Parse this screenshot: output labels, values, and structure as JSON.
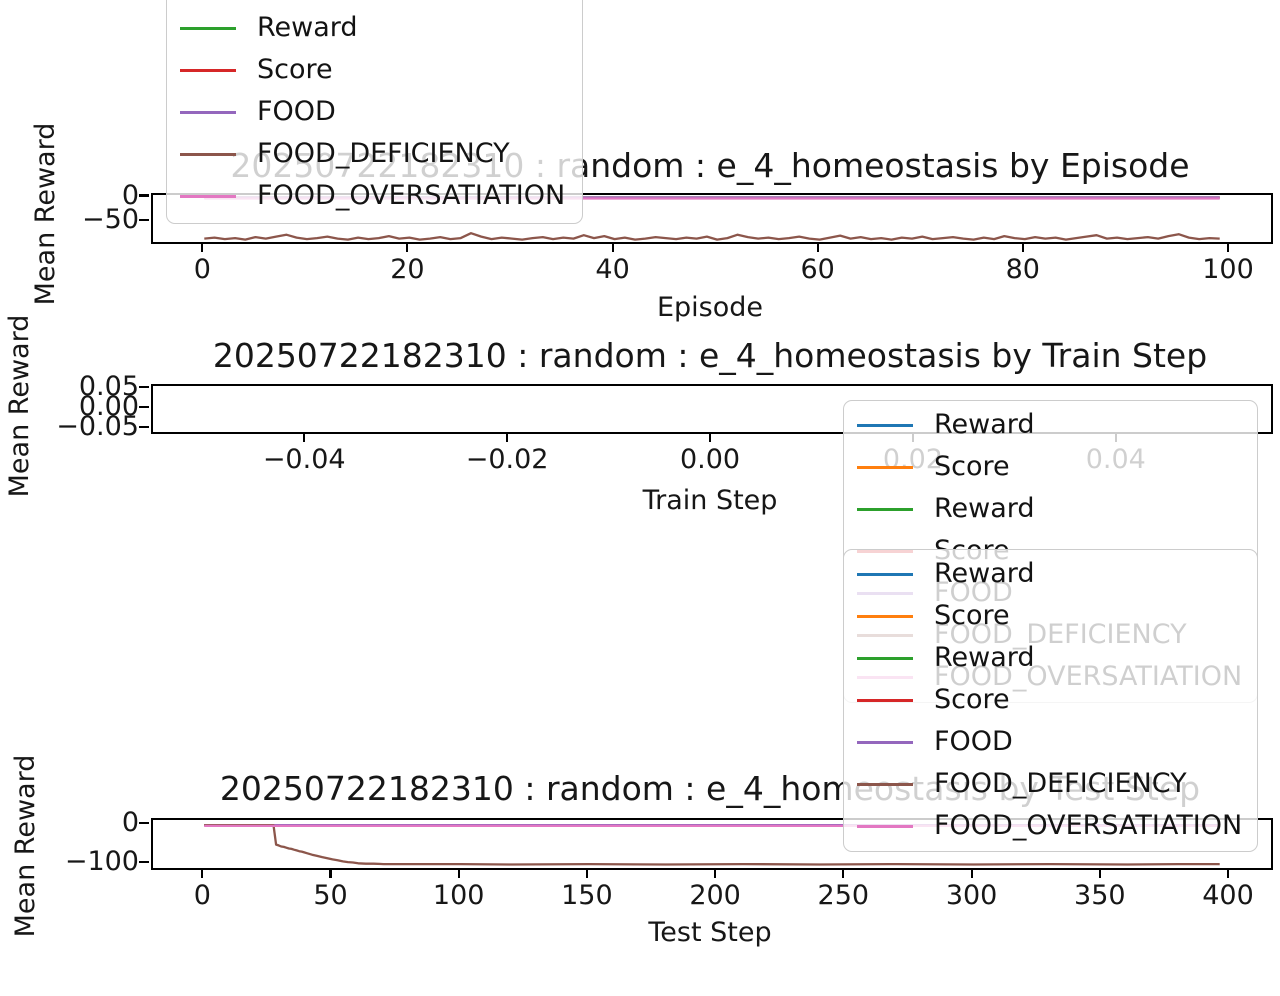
{
  "chart_data": [
    {
      "type": "line",
      "id": "episode",
      "title": "20250722182310 : random : e_4_homeostasis by Episode",
      "xlabel": "Episode",
      "ylabel": "Mean Reward",
      "xlim": [
        -5,
        104
      ],
      "ylim": [
        -91,
        5.2
      ],
      "grid": false,
      "xticks": [
        {
          "v": 0,
          "label": "0"
        },
        {
          "v": 20,
          "label": "20"
        },
        {
          "v": 40,
          "label": "40"
        },
        {
          "v": 60,
          "label": "60"
        },
        {
          "v": 80,
          "label": "80"
        },
        {
          "v": 100,
          "label": "100"
        }
      ],
      "yticks": [
        {
          "v": 0,
          "label": "0"
        },
        {
          "v": -50,
          "label": "−50"
        }
      ],
      "series": [
        {
          "name": "Reward",
          "color": "#2ca02c",
          "type": "flat",
          "y": 0,
          "x0": 0,
          "x1": 99
        },
        {
          "name": "Score",
          "color": "#d62728",
          "type": "flat",
          "y": 0,
          "x0": 0,
          "x1": 99
        },
        {
          "name": "FOOD",
          "color": "#9467bd",
          "type": "flat",
          "y": 0,
          "x0": 0,
          "x1": 99
        },
        {
          "name": "FOOD_DEFICIENCY",
          "color": "#8c564b",
          "type": "values",
          "x0": 0,
          "dx": 1,
          "values": [
            -84,
            -82,
            -85,
            -83,
            -86,
            -81,
            -84,
            -80,
            -76,
            -82,
            -85,
            -83,
            -80,
            -84,
            -86,
            -82,
            -85,
            -83,
            -79,
            -84,
            -82,
            -86,
            -84,
            -81,
            -85,
            -83,
            -73,
            -80,
            -85,
            -82,
            -84,
            -86,
            -83,
            -81,
            -85,
            -82,
            -84,
            -77,
            -83,
            -79,
            -85,
            -82,
            -86,
            -84,
            -81,
            -83,
            -85,
            -82,
            -84,
            -80,
            -86,
            -83,
            -76,
            -81,
            -84,
            -82,
            -85,
            -83,
            -80,
            -84,
            -86,
            -82,
            -78,
            -84,
            -81,
            -85,
            -83,
            -86,
            -82,
            -84,
            -80,
            -85,
            -83,
            -81,
            -84,
            -86,
            -82,
            -85,
            -79,
            -83,
            -85,
            -81,
            -84,
            -82,
            -86,
            -83,
            -80,
            -77,
            -84,
            -82,
            -85,
            -83,
            -81,
            -84,
            -79,
            -75,
            -82,
            -85,
            -83,
            -84
          ]
        },
        {
          "name": "FOOD_OVERSATIATION",
          "color": "#e377c2",
          "type": "flat",
          "y": -2,
          "x0": 0,
          "x1": 99
        }
      ]
    },
    {
      "type": "line",
      "id": "train-step",
      "title": "20250722182310 : random : e_4_homeostasis by Train Step",
      "xlabel": "Train Step",
      "ylabel": "Mean Reward",
      "xlim": [
        -0.0551,
        0.0551
      ],
      "ylim": [
        -0.0575,
        0.0575
      ],
      "grid": false,
      "xticks": [
        {
          "v": -0.04,
          "label": "−0.04"
        },
        {
          "v": -0.02,
          "label": "−0.02"
        },
        {
          "v": 0.0,
          "label": "0.00"
        },
        {
          "v": 0.02,
          "label": "0.02"
        },
        {
          "v": 0.04,
          "label": "0.04"
        }
      ],
      "yticks": [
        {
          "v": 0.05,
          "label": "0.05"
        },
        {
          "v": 0.0,
          "label": "0.00"
        },
        {
          "v": -0.05,
          "label": "−0.05"
        }
      ],
      "series": []
    },
    {
      "type": "line",
      "id": "test-step",
      "title": "20250722182310 : random : e_4_homeostasis by Test Step",
      "xlabel": "Test Step",
      "ylabel": "Mean Reward",
      "xlim": [
        -20,
        416
      ],
      "ylim": [
        -110,
        13
      ],
      "grid": false,
      "xticks": [
        {
          "v": 0,
          "label": "0"
        },
        {
          "v": 50,
          "label": "50"
        },
        {
          "v": 100,
          "label": "100"
        },
        {
          "v": 150,
          "label": "150"
        },
        {
          "v": 200,
          "label": "200"
        },
        {
          "v": 250,
          "label": "250"
        },
        {
          "v": 300,
          "label": "300"
        },
        {
          "v": 350,
          "label": "350"
        },
        {
          "v": 400,
          "label": "400"
        }
      ],
      "yticks": [
        {
          "v": 0,
          "label": "0"
        },
        {
          "v": -100,
          "label": "−100"
        }
      ],
      "series": [
        {
          "name": "Reward",
          "color": "#1f77b4",
          "type": "flat",
          "y": 0,
          "x0": 0,
          "x1": 396
        },
        {
          "name": "Score",
          "color": "#ff7f0e",
          "type": "flat",
          "y": 0,
          "x0": 0,
          "x1": 396
        },
        {
          "name": "Reward",
          "color": "#2ca02c",
          "type": "flat",
          "y": 0,
          "x0": 0,
          "x1": 396
        },
        {
          "name": "Score",
          "color": "#d62728",
          "type": "flat",
          "y": 0,
          "x0": 0,
          "x1": 396
        },
        {
          "name": "FOOD",
          "color": "#9467bd",
          "type": "flat",
          "y": 0,
          "x0": 0,
          "x1": 396
        },
        {
          "name": "FOOD_DEFICIENCY",
          "color": "#8c564b",
          "type": "points",
          "points": [
            [
              0,
              0
            ],
            [
              10,
              0
            ],
            [
              20,
              0
            ],
            [
              25,
              0
            ],
            [
              27,
              0
            ],
            [
              28,
              -50
            ],
            [
              29,
              -52
            ],
            [
              30,
              -55
            ],
            [
              31,
              -56
            ],
            [
              32,
              -58
            ],
            [
              33,
              -60
            ],
            [
              34,
              -61
            ],
            [
              35,
              -63
            ],
            [
              36,
              -65
            ],
            [
              37,
              -67
            ],
            [
              38,
              -68
            ],
            [
              39,
              -70
            ],
            [
              40,
              -72
            ],
            [
              42,
              -76
            ],
            [
              44,
              -79
            ],
            [
              46,
              -82
            ],
            [
              48,
              -85
            ],
            [
              50,
              -88
            ],
            [
              52,
              -90
            ],
            [
              54,
              -93
            ],
            [
              56,
              -95
            ],
            [
              58,
              -96
            ],
            [
              60,
              -98
            ],
            [
              63,
              -99
            ],
            [
              66,
              -99
            ],
            [
              70,
              -100
            ],
            [
              80,
              -100
            ],
            [
              100,
              -100
            ],
            [
              120,
              -101
            ],
            [
              150,
              -100
            ],
            [
              180,
              -101
            ],
            [
              210,
              -100
            ],
            [
              240,
              -101
            ],
            [
              270,
              -100
            ],
            [
              300,
              -101
            ],
            [
              330,
              -100
            ],
            [
              360,
              -101
            ],
            [
              380,
              -100
            ],
            [
              396,
              -100
            ]
          ]
        },
        {
          "name": "FOOD_OVERSATIATION",
          "color": "#e377c2",
          "type": "flat",
          "y": -2,
          "x0": 0,
          "x1": 396
        }
      ]
    }
  ],
  "legends": [
    {
      "id": "legend-episode",
      "entries": [
        {
          "label": "Reward",
          "color": "#2ca02c"
        },
        {
          "label": "Score",
          "color": "#d62728"
        },
        {
          "label": "FOOD",
          "color": "#9467bd"
        },
        {
          "label": "FOOD_DEFICIENCY",
          "color": "#8c564b"
        },
        {
          "label": "FOOD_OVERSATIATION",
          "color": "#e377c2"
        }
      ]
    },
    {
      "id": "legend-train-step",
      "entries": [
        {
          "label": "Reward",
          "color": "#1f77b4"
        },
        {
          "label": "Score",
          "color": "#ff7f0e"
        },
        {
          "label": "Reward",
          "color": "#2ca02c"
        },
        {
          "label": "Score",
          "color": "#d62728"
        },
        {
          "label": "FOOD",
          "color": "#9467bd"
        },
        {
          "label": "FOOD_DEFICIENCY",
          "color": "#8c564b"
        },
        {
          "label": "FOOD_OVERSATIATION",
          "color": "#e377c2"
        }
      ]
    },
    {
      "id": "legend-test-step",
      "entries": [
        {
          "label": "Reward",
          "color": "#1f77b4"
        },
        {
          "label": "Score",
          "color": "#ff7f0e"
        },
        {
          "label": "Reward",
          "color": "#2ca02c"
        },
        {
          "label": "Score",
          "color": "#d62728"
        },
        {
          "label": "FOOD",
          "color": "#9467bd"
        },
        {
          "label": "FOOD_DEFICIENCY",
          "color": "#8c564b"
        },
        {
          "label": "FOOD_OVERSATIATION",
          "color": "#e377c2"
        }
      ]
    }
  ]
}
